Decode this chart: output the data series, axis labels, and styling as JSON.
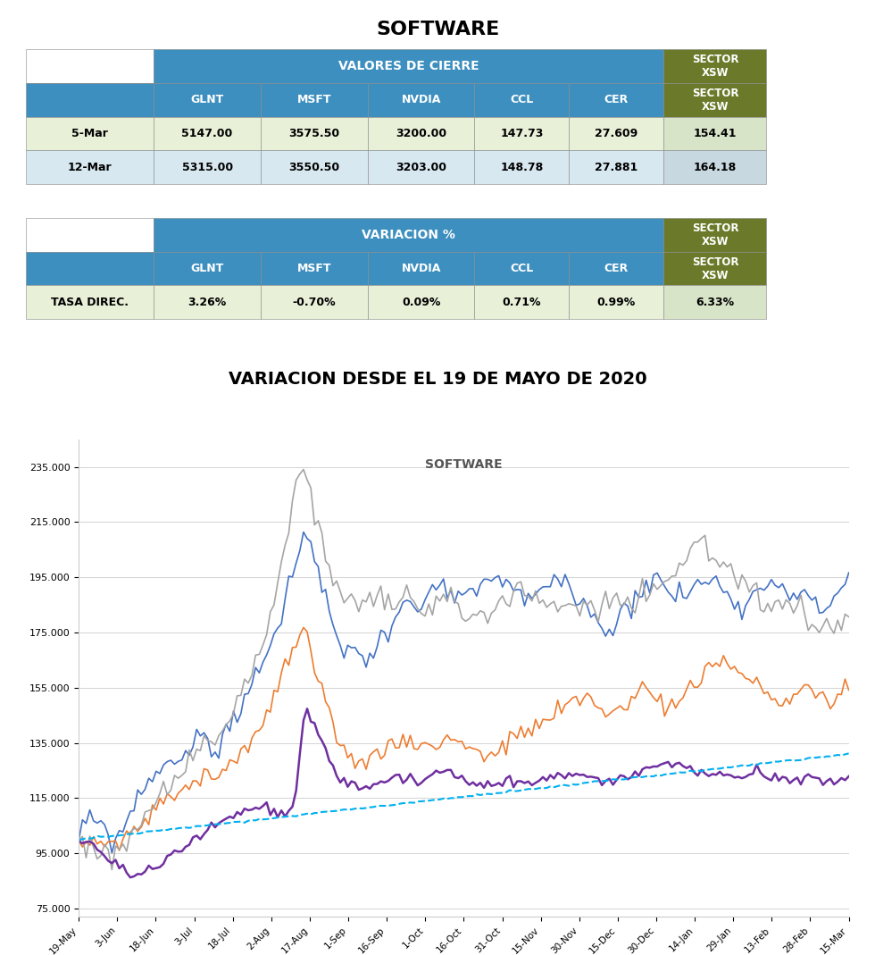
{
  "title_top": "SOFTWARE",
  "title_variation": "VARIACION DESDE EL 19 DE MAYO DE 2020",
  "chart_title": "SOFTWARE",
  "table1_header_label": "VALORES DE CIERRE",
  "table1_cols": [
    "GLNT",
    "MSFT",
    "NVDIA",
    "CCL",
    "CER"
  ],
  "table1_sector_label": "SECTOR\nXSW",
  "table1_rows": [
    [
      "5-Mar",
      "5147.00",
      "3575.50",
      "3200.00",
      "147.73",
      "27.609",
      "154.41"
    ],
    [
      "12-Mar",
      "5315.00",
      "3550.50",
      "3203.00",
      "148.78",
      "27.881",
      "164.18"
    ]
  ],
  "table2_header_label": "VARIACION %",
  "table2_cols": [
    "GLNT",
    "MSFT",
    "NVDIA",
    "CCL",
    "CER"
  ],
  "table2_sector_label": "SECTOR\nXSW",
  "table2_rows": [
    [
      "TASA DIREC.",
      "3.26%",
      "-0.70%",
      "0.09%",
      "0.71%",
      "0.99%",
      "6.33%"
    ]
  ],
  "header_bg": "#3D8FBF",
  "header_text": "#FFFFFF",
  "sector_bg": "#6B7A2A",
  "sector_text": "#FFFFFF",
  "row1_bg": "#E8F0D8",
  "row2_bg": "#D8E8F0",
  "sector_row1_bg": "#D8E4C8",
  "sector_row2_bg": "#C8D8E0",
  "colors": {
    "GLNT": "#4472C4",
    "MSFT": "#ED7D31",
    "NVDIA": "#A5A5A5",
    "CCL": "#7030A0",
    "CER": "#00B0F0"
  },
  "x_labels": [
    "19-May",
    "3-Jun",
    "18-Jun",
    "3-Jul",
    "18-Jul",
    "2-Aug",
    "17-Aug",
    "1-Sep",
    "16-Sep",
    "1-Oct",
    "16-Oct",
    "31-Oct",
    "15-Nov",
    "30-Nov",
    "15-Dec",
    "30-Dec",
    "14-Jan",
    "29-Jan",
    "13-Feb",
    "28-Feb",
    "15-Mar"
  ],
  "y_ticks": [
    75000,
    95000,
    115000,
    135000,
    155000,
    175000,
    195000,
    215000,
    235000
  ],
  "ylim": [
    72000,
    245000
  ]
}
